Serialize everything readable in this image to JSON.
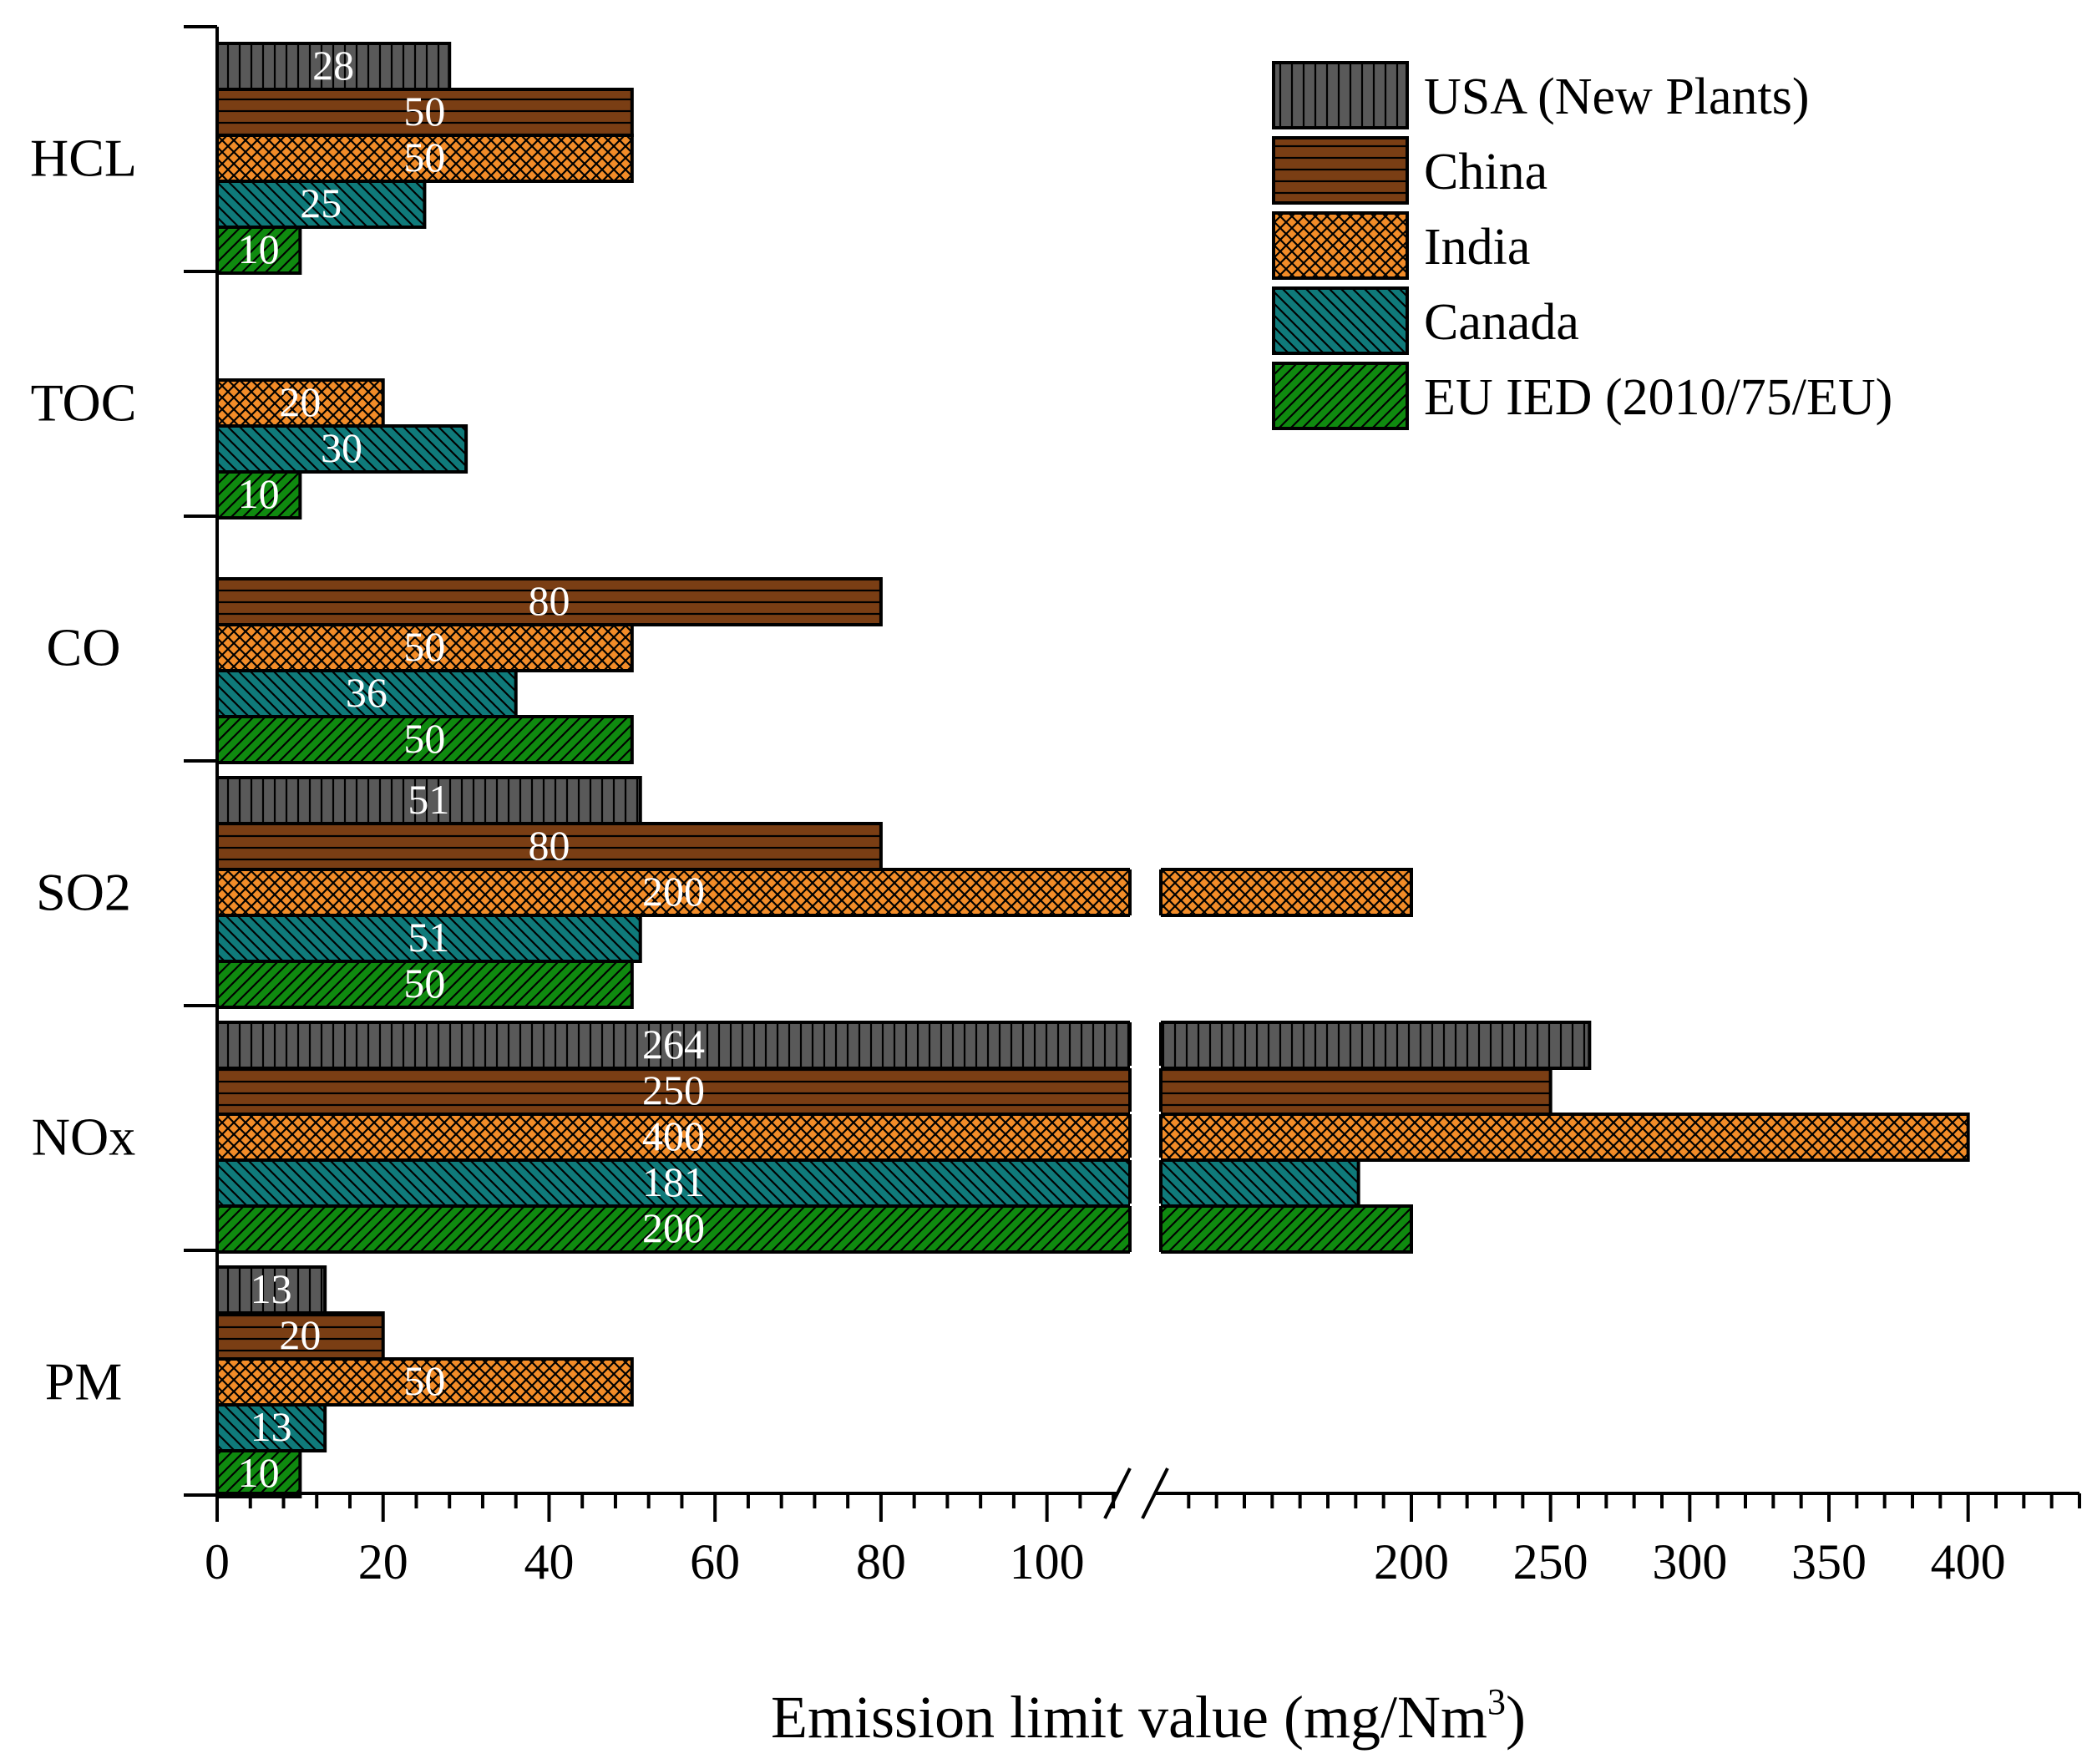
{
  "chart_data": {
    "type": "bar",
    "orientation": "horizontal",
    "categories": [
      "HCL",
      "TOC",
      "CO",
      "SO2",
      "NOx",
      "PM"
    ],
    "series": [
      {
        "name": "USA (New Plants)",
        "color": "#595959",
        "pattern": "vertical-lines",
        "values": [
          28,
          null,
          null,
          51,
          264,
          13
        ]
      },
      {
        "name": "China",
        "color": "#7a3e14",
        "pattern": "horizontal-lines",
        "values": [
          50,
          null,
          80,
          80,
          250,
          20
        ]
      },
      {
        "name": "India",
        "color": "#f28c28",
        "pattern": "crosshatch",
        "values": [
          50,
          20,
          50,
          200,
          400,
          50
        ]
      },
      {
        "name": "Canada",
        "color": "#0f7a7a",
        "pattern": "back-diagonal",
        "values": [
          25,
          30,
          36,
          51,
          181,
          13
        ]
      },
      {
        "name": "EU IED (2010/75/EU)",
        "color": "#0f8a0f",
        "pattern": "forward-diagonal",
        "values": [
          10,
          10,
          50,
          50,
          200,
          10
        ]
      }
    ],
    "data_labels": [
      [
        "28",
        "50",
        "50",
        "25",
        "10"
      ],
      [
        "",
        "",
        "20",
        "30",
        "10"
      ],
      [
        "",
        "80",
        "50",
        "36",
        "50"
      ],
      [
        "51",
        "80",
        "200",
        "51",
        "50"
      ],
      [
        "264",
        "250",
        "400",
        "181",
        "200"
      ],
      [
        "13",
        "20",
        "50",
        "13",
        "10"
      ]
    ],
    "x_axis": {
      "label_main": "Emission limit value (mg/Nm",
      "label_sup": "3",
      "label_close": ")",
      "broken": true,
      "segment1": {
        "range": [
          0,
          110
        ],
        "ticks": [
          "0",
          "20",
          "40",
          "60",
          "80",
          "100"
        ],
        "tick_values": [
          0,
          20,
          40,
          60,
          80,
          100
        ]
      },
      "segment2": {
        "range": [
          110,
          440
        ],
        "ticks": [
          "200",
          "250",
          "300",
          "350",
          "400"
        ],
        "tick_values": [
          200,
          250,
          300,
          350,
          400
        ]
      }
    },
    "legend_position": "top-right",
    "grid": false
  }
}
